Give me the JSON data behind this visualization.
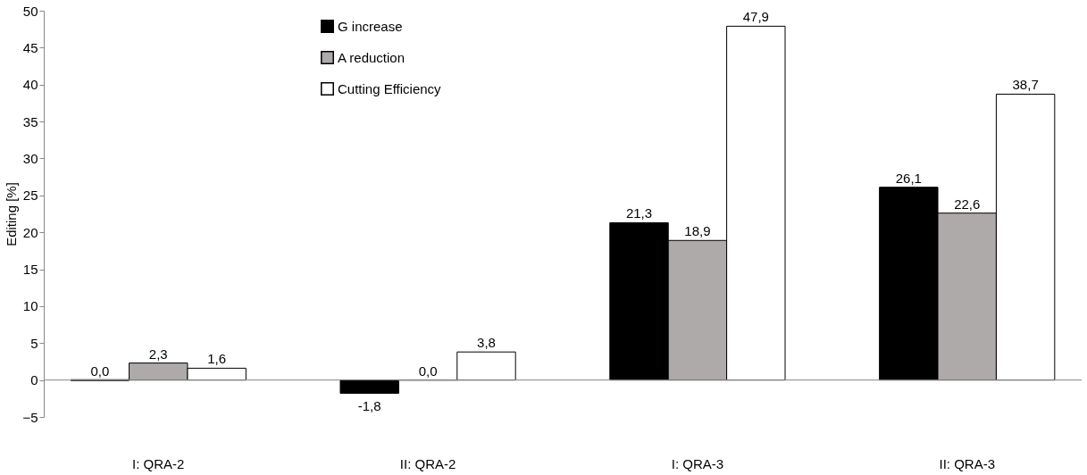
{
  "chart_data": {
    "type": "bar",
    "ylabel": "Editing [%]",
    "categories": [
      "I: QRA-2",
      "II: QRA-2",
      null,
      "I: QRA-3",
      "II: QRA-3"
    ],
    "series": [
      {
        "name": "G increase",
        "color": "#000000",
        "values": [
          0.0,
          -1.8,
          null,
          21.3,
          26.1
        ],
        "value_labels": [
          "0,0",
          "-1,8",
          null,
          "21,3",
          "26,1"
        ]
      },
      {
        "name": "A reduction",
        "color": "#aeaaaa",
        "values": [
          2.3,
          0.0,
          null,
          18.9,
          22.6
        ],
        "value_labels": [
          "2,3",
          "0,0",
          null,
          "18,9",
          "22,6"
        ]
      },
      {
        "name": "Cutting Efficiency",
        "color": "#ffffff",
        "values": [
          1.6,
          3.8,
          null,
          47.9,
          38.7
        ],
        "value_labels": [
          "1,6",
          "3,8",
          null,
          "47,9",
          "38,7"
        ]
      }
    ],
    "ylim": [
      -5,
      50
    ],
    "yticks": [
      -5,
      0,
      5,
      10,
      15,
      20,
      25,
      30,
      35,
      40,
      45,
      50
    ],
    "legend": "top"
  }
}
